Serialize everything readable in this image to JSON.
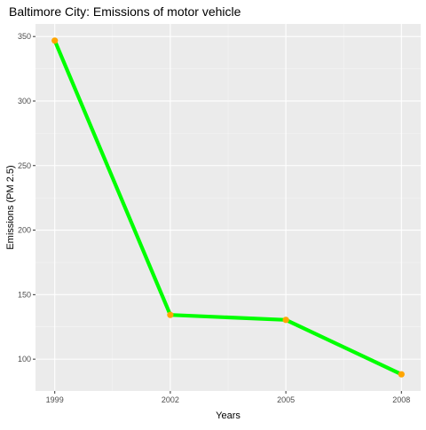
{
  "colors": {
    "panel_background": "#ebebeb",
    "grid_major": "#ffffff",
    "grid_minor": "#f5f5f5",
    "line": "#00ff00",
    "points": "#ffa500",
    "tick": "#333333",
    "tick_label": "#4d4d4d",
    "text": "#000000"
  },
  "chart_data": {
    "type": "line",
    "title": "Baltimore City: Emissions of motor vehicle",
    "xlabel": "Years",
    "ylabel": "Emissions (PM 2.5)",
    "x": [
      1999,
      2002,
      2005,
      2008
    ],
    "series": [
      {
        "values": [
          346.82,
          134.31,
          130.43,
          88.28
        ]
      }
    ],
    "xlim": [
      1998.5,
      2008.5
    ],
    "ylim": [
      75.36,
      359.74
    ],
    "xticks": [
      1999,
      2002,
      2005,
      2008
    ],
    "xtick_labels": [
      "1999",
      "2002",
      "2005",
      "2008"
    ],
    "xminor": [
      2000.5,
      2003.5,
      2006.5
    ],
    "yticks": [
      100,
      150,
      200,
      250,
      300,
      350
    ],
    "ytick_labels": [
      "100",
      "150",
      "200",
      "250",
      "300",
      "350"
    ],
    "yminor": [
      125,
      175,
      225,
      275,
      325
    ],
    "grid": true,
    "legend": "none"
  }
}
